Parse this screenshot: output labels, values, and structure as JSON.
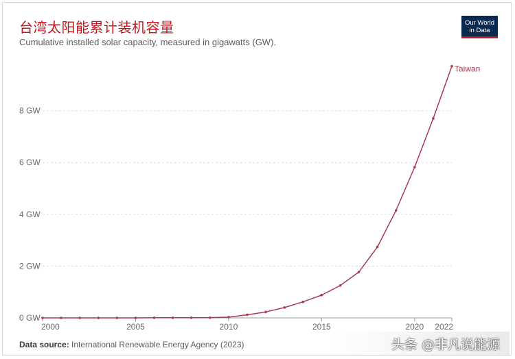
{
  "header": {
    "title": "台湾太阳能累计装机容量",
    "subtitle": "Cumulative installed solar capacity, measured in gigawatts (GW)."
  },
  "logo": {
    "line1": "Our World",
    "line2": "in Data"
  },
  "footer": {
    "label": "Data source:",
    "text": " International Renewable Energy Agency (2023)"
  },
  "watermark": {
    "text": "头条 @非凡说能源"
  },
  "colors": {
    "series": "#a83a4d",
    "title": "#c4161c",
    "grid": "#dddddd",
    "axis": "#666666"
  },
  "chart_data": {
    "type": "line",
    "x": [
      2000,
      2001,
      2002,
      2003,
      2004,
      2005,
      2006,
      2007,
      2008,
      2009,
      2010,
      2011,
      2012,
      2013,
      2014,
      2015,
      2016,
      2017,
      2018,
      2019,
      2020,
      2021,
      2022
    ],
    "series": [
      {
        "name": "Taiwan",
        "values": [
          0,
          0,
          0,
          0,
          0,
          0,
          0.005,
          0.006,
          0.008,
          0.01,
          0.03,
          0.12,
          0.23,
          0.4,
          0.62,
          0.88,
          1.25,
          1.77,
          2.74,
          4.15,
          5.82,
          7.7,
          9.72
        ]
      }
    ],
    "ylim": [
      0,
      10
    ],
    "xlim": [
      2000,
      2022
    ],
    "yticks": [
      0,
      2,
      4,
      6,
      8
    ],
    "ytick_labels": [
      "0 GW",
      "2 GW",
      "4 GW",
      "6 GW",
      "8 GW"
    ],
    "xticks": [
      2000,
      2005,
      2010,
      2015,
      2020,
      2022
    ],
    "xtick_labels": [
      "2000",
      "2005",
      "2010",
      "2015",
      "2020",
      "2022"
    ],
    "grid": true
  }
}
